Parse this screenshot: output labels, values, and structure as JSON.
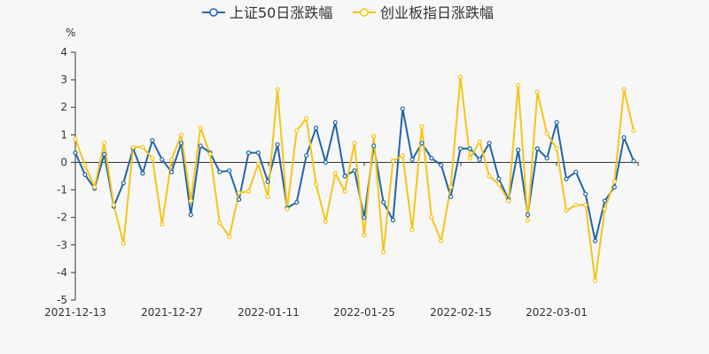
{
  "chart_data": {
    "type": "line",
    "y_unit": "%",
    "ylim": [
      -5,
      4
    ],
    "y_ticks": [
      -5,
      -4,
      -3,
      -2,
      -1,
      0,
      1,
      2,
      3,
      4
    ],
    "x_tick_labels": [
      "2021-12-13",
      "2021-12-27",
      "2022-01-11",
      "2022-01-25",
      "2022-02-15",
      "2022-03-01"
    ],
    "grid": false,
    "legend_position": "top-center",
    "series": [
      {
        "name": "上证50日涨跌幅",
        "color": "#2066a8",
        "values": [
          0.35,
          -0.45,
          -0.95,
          0.3,
          -1.6,
          -0.75,
          0.5,
          -0.4,
          0.8,
          0.1,
          -0.35,
          0.7,
          -1.9,
          0.6,
          0.35,
          -0.35,
          -0.3,
          -1.35,
          0.35,
          0.35,
          -0.7,
          0.65,
          -1.65,
          -1.45,
          0.25,
          1.25,
          0.0,
          1.45,
          -0.5,
          -0.3,
          -2.0,
          0.6,
          -1.45,
          -2.1,
          1.95,
          0.1,
          0.7,
          0.15,
          -0.1,
          -1.25,
          0.5,
          0.5,
          0.1,
          0.7,
          -0.6,
          -1.35,
          0.45,
          -1.9,
          0.5,
          0.15,
          1.45,
          -0.6,
          -0.35,
          -1.15,
          -2.85,
          -1.4,
          -0.9,
          0.9,
          0.05
        ]
      },
      {
        "name": "创业板指日涨跌幅",
        "color": "#f5c518",
        "values": [
          0.85,
          -0.1,
          -0.9,
          0.7,
          -1.55,
          -2.95,
          0.55,
          0.55,
          0.15,
          -2.25,
          0.1,
          1.0,
          -1.4,
          1.25,
          0.3,
          -2.2,
          -2.7,
          -1.1,
          -1.05,
          -0.05,
          -1.25,
          2.65,
          -1.7,
          1.15,
          1.6,
          -0.8,
          -2.15,
          -0.4,
          -1.05,
          0.7,
          -2.65,
          0.95,
          -3.25,
          0.05,
          0.25,
          -2.45,
          1.3,
          -2.0,
          -2.85,
          -0.9,
          3.1,
          0.15,
          0.75,
          -0.5,
          -0.8,
          -1.4,
          2.8,
          -2.1,
          2.55,
          1.05,
          0.5,
          -1.75,
          -1.55,
          -1.55,
          -4.3,
          -1.7,
          -0.7,
          2.65,
          1.15
        ]
      }
    ]
  }
}
